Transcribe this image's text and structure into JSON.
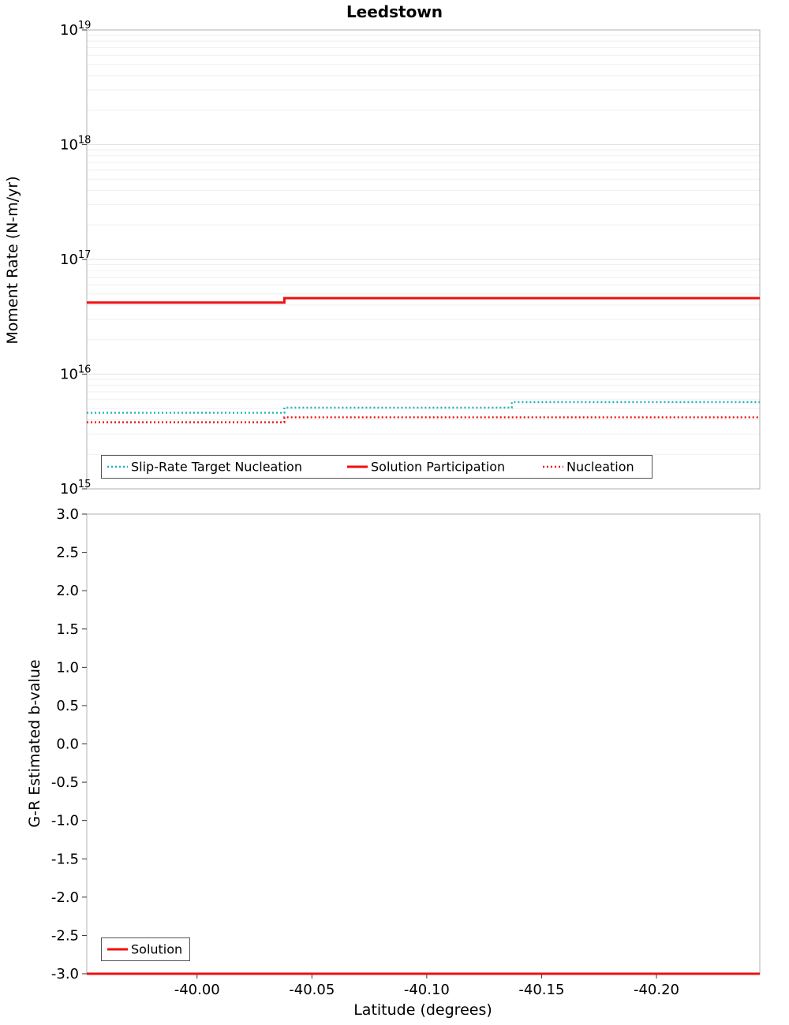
{
  "figure": {
    "title": "Leedstown",
    "background": "#ffffff",
    "border_color": "#b0b0b0",
    "grid_minor_color": "#efefef",
    "grid_major_color": "#e2e2e2",
    "tick_color": "#333333",
    "legend_border_color": "#555555",
    "accent_red": "#ee1111",
    "accent_teal": "#23b3bd"
  },
  "chart_data": [
    {
      "type": "line",
      "title": "Leedstown",
      "ylabel": "Moment Rate (N-m/yr)",
      "xlabel": "",
      "yscale": "log",
      "ylim": [
        1000000000000000.0,
        1e+19
      ],
      "xlim": [
        -39.952,
        -40.245
      ],
      "y_tick_base": "10",
      "y_tick_exponents": [
        "15",
        "16",
        "17",
        "18",
        "19"
      ],
      "x_tick_labels": [
        "-40.00",
        "-40.05",
        "-40.10",
        "-40.15",
        "-40.20"
      ],
      "x_tick_labels_visible": false,
      "grid": true,
      "legend": {
        "position": "bottom-left",
        "entries": [
          "Slip-Rate Target Nucleation",
          "Solution Participation",
          "Nucleation"
        ]
      },
      "series": [
        {
          "name": "Slip-Rate Target Nucleation",
          "color": "#23b3bd",
          "style": "dotted",
          "x": [
            -39.952,
            -40.038,
            -40.038,
            -40.137,
            -40.137,
            -40.245
          ],
          "y": [
            4600000000000000.0,
            4600000000000000.0,
            5100000000000000.0,
            5100000000000000.0,
            5700000000000000.0,
            5700000000000000.0
          ]
        },
        {
          "name": "Solution Participation",
          "color": "#ee1111",
          "style": "solid",
          "x": [
            -39.952,
            -40.038,
            -40.038,
            -40.245
          ],
          "y": [
            4.2e+16,
            4.2e+16,
            4.6e+16,
            4.6e+16
          ]
        },
        {
          "name": "Nucleation",
          "color": "#ee1111",
          "style": "dotted",
          "x": [
            -39.952,
            -40.038,
            -40.038,
            -40.245
          ],
          "y": [
            3800000000000000.0,
            3800000000000000.0,
            4200000000000000.0,
            4200000000000000.0
          ]
        }
      ]
    },
    {
      "type": "line",
      "title": "",
      "ylabel": "G-R Estimated b-value",
      "xlabel": "Latitude (degrees)",
      "yscale": "linear",
      "ylim": [
        -3.0,
        3.0
      ],
      "xlim": [
        -39.952,
        -40.245
      ],
      "y_tick_labels": [
        "3.0",
        "2.5",
        "2.0",
        "1.5",
        "1.0",
        "0.5",
        "0.0",
        "-0.5",
        "-1.0",
        "-1.5",
        "-2.0",
        "-2.5",
        "-3.0"
      ],
      "x_tick_labels": [
        "-40.00",
        "-40.05",
        "-40.10",
        "-40.15",
        "-40.20"
      ],
      "grid": false,
      "legend": {
        "position": "bottom-left",
        "entries": [
          "Solution"
        ]
      },
      "series": [
        {
          "name": "Solution",
          "color": "#ee1111",
          "style": "solid",
          "x": [
            -39.952,
            -40.245
          ],
          "y": [
            -3.0,
            -3.0
          ]
        }
      ]
    }
  ]
}
